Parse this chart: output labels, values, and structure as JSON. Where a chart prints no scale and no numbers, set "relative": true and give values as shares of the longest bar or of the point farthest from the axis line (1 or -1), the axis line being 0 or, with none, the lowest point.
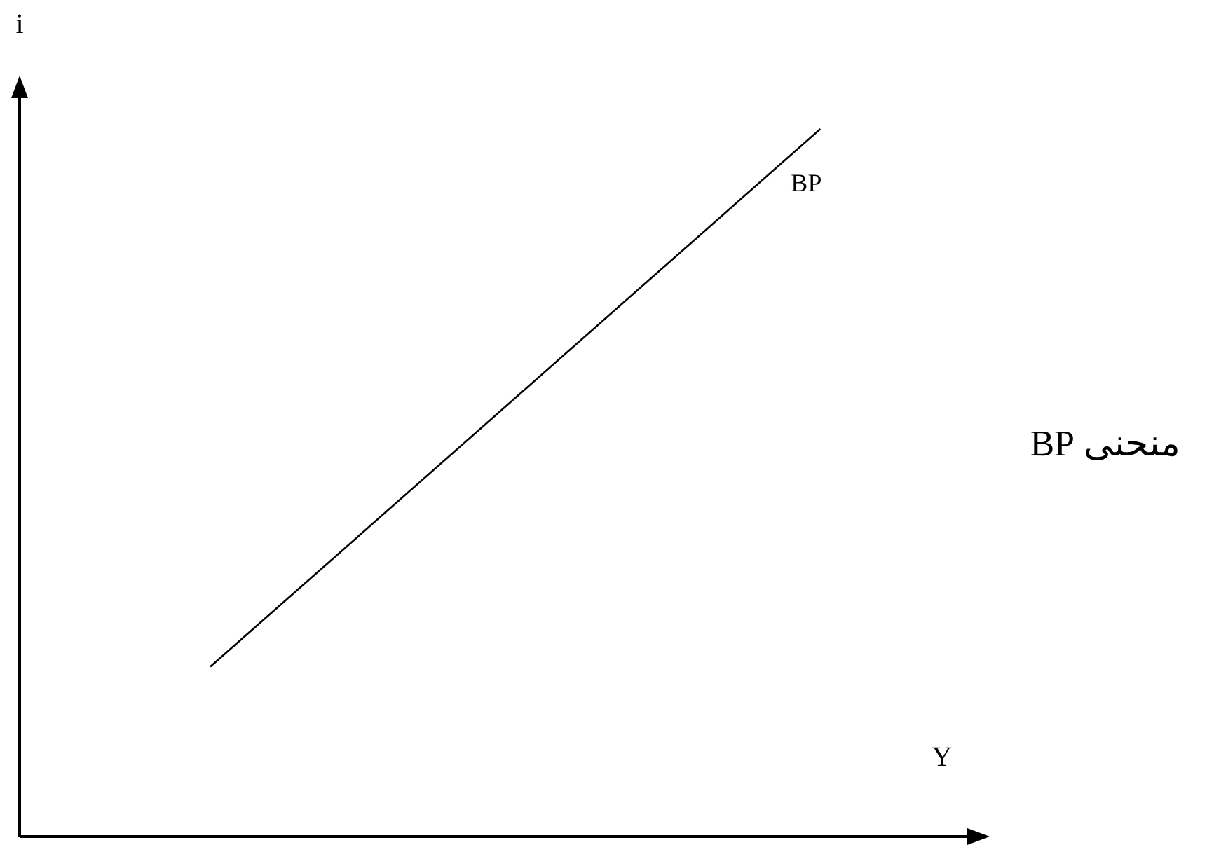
{
  "chart_data": {
    "type": "line",
    "relative": true,
    "xlabel": "Y",
    "ylabel": "i",
    "marker": "none",
    "categories": [
      null,
      null,
      null,
      null,
      null,
      null,
      null,
      null,
      null,
      null,
      null,
      null,
      null,
      null,
      null,
      null,
      null,
      null,
      null,
      null,
      null,
      null,
      null,
      null,
      null,
      null
    ],
    "series": [
      {
        "name": "BP",
        "color": "#000000",
        "values": [
          null,
          null,
          null,
          null,
          null,
          0.24,
          null,
          null,
          null,
          null,
          null,
          null,
          null,
          null,
          null,
          null,
          null,
          null,
          null,
          null,
          null,
          1,
          null,
          null,
          null,
          null
        ]
      }
    ],
    "annotations": [
      "منحنى BP"
    ]
  }
}
